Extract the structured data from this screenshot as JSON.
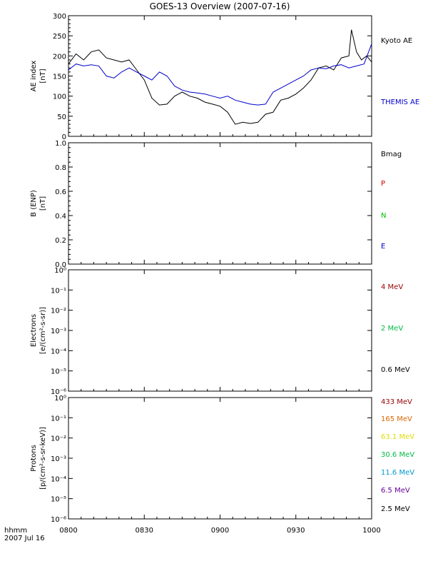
{
  "chart_data": {
    "type": "line",
    "title": "GOES-13 Overview (2007-07-16)",
    "x_axis": {
      "range": [
        "0800",
        "1000"
      ],
      "ticks": [
        "0800",
        "0830",
        "0900",
        "0930",
        "1000"
      ],
      "label_line1": "hhmm",
      "label_line2": "2007 Jul 16"
    },
    "panels": [
      {
        "ylabel_line1": "AE index",
        "ylabel_line2": "[nT]",
        "ylim": [
          0,
          300
        ],
        "yticks": [
          "0",
          "50",
          "100",
          "150",
          "200",
          "250",
          "300"
        ],
        "scale": "linear",
        "legend": [
          {
            "label": "Kyoto AE",
            "color": "#000000"
          },
          {
            "label": "THEMIS AE",
            "color": "#0000cc"
          }
        ],
        "series": [
          {
            "name": "Kyoto AE",
            "color": "#000000",
            "x_minutes_after_0800": [
              0,
              3,
              6,
              9,
              12,
              15,
              18,
              21,
              24,
              27,
              30,
              33,
              36,
              39,
              42,
              45,
              48,
              51,
              54,
              57,
              60,
              63,
              66,
              69,
              72,
              75,
              78,
              81,
              84,
              87,
              90,
              93,
              96,
              99,
              102,
              105,
              108,
              111,
              112,
              114,
              116,
              117,
              118,
              120
            ],
            "values": [
              180,
              205,
              190,
              210,
              215,
              195,
              190,
              185,
              190,
              165,
              140,
              95,
              78,
              80,
              100,
              110,
              100,
              95,
              85,
              80,
              75,
              60,
              30,
              35,
              32,
              35,
              55,
              60,
              90,
              95,
              105,
              120,
              140,
              170,
              175,
              165,
              195,
              200,
              265,
              210,
              190,
              195,
              200,
              185
            ]
          },
          {
            "name": "THEMIS AE",
            "color": "#0000cc",
            "x_minutes_after_0800": [
              0,
              3,
              6,
              9,
              12,
              15,
              18,
              21,
              24,
              27,
              30,
              33,
              36,
              39,
              42,
              45,
              48,
              51,
              54,
              57,
              60,
              63,
              66,
              69,
              72,
              75,
              78,
              81,
              84,
              87,
              90,
              93,
              96,
              99,
              102,
              105,
              108,
              111,
              114,
              117,
              120
            ],
            "values": [
              165,
              180,
              175,
              178,
              175,
              150,
              145,
              160,
              170,
              160,
              150,
              140,
              160,
              150,
              125,
              115,
              110,
              108,
              105,
              100,
              95,
              100,
              90,
              85,
              80,
              78,
              80,
              110,
              120,
              130,
              140,
              150,
              165,
              170,
              168,
              175,
              178,
              170,
              175,
              180,
              230
            ]
          }
        ]
      },
      {
        "ylabel_line1": "B (ENP)",
        "ylabel_line2": "[nT]",
        "ylim": [
          0,
          1
        ],
        "yticks": [
          "0.0",
          "0.2",
          "0.4",
          "0.6",
          "0.8",
          "1.0"
        ],
        "scale": "linear",
        "legend": [
          {
            "label": "Bmag",
            "color": "#000000"
          },
          {
            "label": "P",
            "color": "#cc0000"
          },
          {
            "label": "N",
            "color": "#00bb00"
          },
          {
            "label": "E",
            "color": "#0000cc"
          }
        ],
        "series": []
      },
      {
        "ylabel_line1": "Electrons",
        "ylabel_line2": "[e/(cm²-s-sr)]",
        "ylim": [
          1e-06,
          1
        ],
        "yticks": [
          "10⁰",
          "10⁻¹",
          "10⁻²",
          "10⁻³",
          "10⁻⁴",
          "10⁻⁵",
          "10⁻⁶"
        ],
        "scale": "log",
        "legend": [
          {
            "label": "4 MeV",
            "color": "#990000"
          },
          {
            "label": "2 MeV",
            "color": "#00bb44"
          },
          {
            "label": "0.6 MeV",
            "color": "#000000"
          }
        ],
        "series": []
      },
      {
        "ylabel_line1": "Protons",
        "ylabel_line2": "[p/(cm²-s-sr-keV)]",
        "ylim": [
          1e-06,
          1
        ],
        "yticks": [
          "10⁰",
          "10⁻¹",
          "10⁻²",
          "10⁻³",
          "10⁻⁴",
          "10⁻⁵",
          "10⁻⁶"
        ],
        "scale": "log",
        "legend": [
          {
            "label": "433 MeV",
            "color": "#990000"
          },
          {
            "label": "165 MeV",
            "color": "#dd6600"
          },
          {
            "label": "63.1 MeV",
            "color": "#dddd00"
          },
          {
            "label": "30.6 MeV",
            "color": "#00bb44"
          },
          {
            "label": "11.6 MeV",
            "color": "#0099cc"
          },
          {
            "label": "6.5 MeV",
            "color": "#660099"
          },
          {
            "label": "2.5 MeV",
            "color": "#000000"
          }
        ],
        "series": []
      }
    ]
  }
}
